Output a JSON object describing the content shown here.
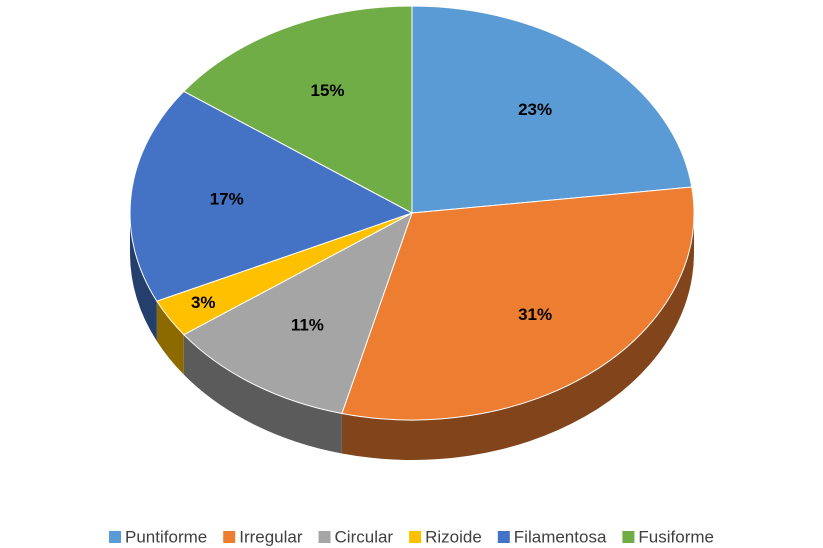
{
  "chart_data": {
    "type": "pie",
    "categories": [
      "Puntiforme",
      "Irregular",
      "Circular",
      "Rizoide",
      "Filamentosa",
      "Fusiforme"
    ],
    "values": [
      23,
      31,
      11,
      3,
      17,
      15
    ],
    "value_labels": [
      "23%",
      "31%",
      "11%",
      "3%",
      "17%",
      "15%"
    ],
    "colors": [
      "#5b9bd5",
      "#ed7d31",
      "#a5a5a5",
      "#ffc000",
      "#4472c4",
      "#70ad47"
    ],
    "legend": "bottom"
  }
}
